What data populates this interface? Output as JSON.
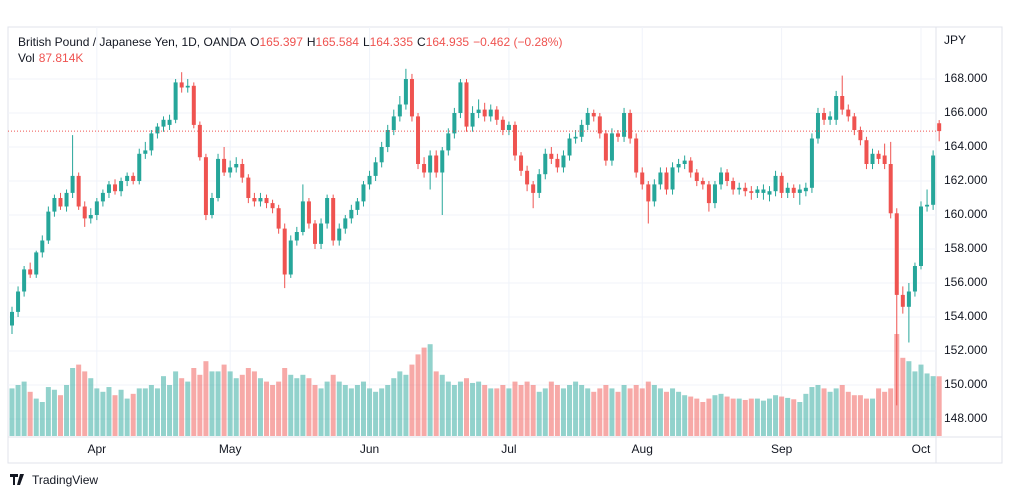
{
  "chart_data": {
    "type": "candlestick",
    "title": "British Pound / Japanese Yen, 1D, OANDA",
    "ohlc_letters": [
      "O",
      "H",
      "L",
      "C"
    ],
    "change_label": "−0.462 (−0.28%)",
    "volume_name": "Vol",
    "volume_label": "87.814K",
    "currency": "JPY",
    "brand": "TradingView",
    "up_color": "#26a69a",
    "down_color": "#ef5350",
    "grid": true,
    "ylim": [
      147,
      171
    ],
    "volume_lim": [
      0,
      600
    ],
    "yticks": [
      {
        "value": 148,
        "label": "148.000"
      },
      {
        "value": 150,
        "label": "150.000"
      },
      {
        "value": 152,
        "label": "152.000"
      },
      {
        "value": 154,
        "label": "154.000"
      },
      {
        "value": 156,
        "label": "156.000"
      },
      {
        "value": 158,
        "label": "158.000"
      },
      {
        "value": 160,
        "label": "160.000"
      },
      {
        "value": 162,
        "label": "162.000"
      },
      {
        "value": 164,
        "label": "164.000"
      },
      {
        "value": 166,
        "label": "166.000"
      },
      {
        "value": 168,
        "label": "168.000"
      }
    ],
    "xticks": [
      {
        "value": 14,
        "label": "Apr"
      },
      {
        "value": 36,
        "label": "May"
      },
      {
        "value": 59,
        "label": "Jun"
      },
      {
        "value": 82,
        "label": "Jul"
      },
      {
        "value": 104,
        "label": "Aug"
      },
      {
        "value": 127,
        "label": "Sep"
      },
      {
        "value": 150,
        "label": "Oct"
      }
    ],
    "open": [
      153.5,
      154.3,
      155.5,
      156.8,
      156.5,
      157.8,
      158.5,
      160.2,
      161.0,
      160.5,
      161.3,
      162.3,
      160.5,
      159.8,
      160.0,
      160.8,
      161.3,
      161.8,
      161.4,
      162.0,
      162.3,
      162.0,
      163.6,
      163.8,
      164.8,
      165.2,
      165.3,
      165.6,
      167.8,
      167.5,
      167.6,
      165.3,
      163.4,
      160.0,
      161.0,
      163.3,
      162.5,
      162.8,
      163.0,
      162.2,
      161.0,
      160.8,
      161.0,
      160.7,
      160.4,
      159.2,
      156.5,
      158.5,
      159.0,
      160.8,
      159.5,
      158.3,
      159.5,
      161.0,
      158.5,
      159.2,
      159.8,
      160.3,
      160.8,
      161.8,
      162.3,
      163.1,
      164.0,
      165.0,
      165.8,
      166.5,
      168.0,
      165.8,
      163.0,
      162.5,
      163.5,
      162.5,
      163.8,
      164.8,
      166.0,
      167.8,
      165.2,
      166.0,
      166.2,
      165.8,
      166.2,
      165.6,
      165.0,
      165.3,
      163.5,
      162.6,
      161.8,
      161.3,
      162.4,
      163.6,
      163.3,
      162.8,
      163.5,
      164.5,
      164.6,
      165.3,
      166.0,
      165.8,
      164.8,
      163.2,
      164.8,
      164.6,
      166.0,
      164.5,
      162.5,
      161.8,
      160.8,
      161.8,
      162.5,
      161.5,
      162.8,
      163.0,
      163.2,
      162.5,
      162.0,
      161.8,
      160.7,
      161.8,
      162.5,
      162.0,
      161.5,
      161.6,
      161.4,
      161.3,
      161.3,
      161.2,
      161.4,
      162.3,
      161.3,
      161.6,
      161.3,
      161.4,
      161.6,
      164.5,
      166.0,
      165.6,
      165.6,
      167.0,
      166.2,
      165.8,
      165.0,
      164.4,
      163.0,
      163.6,
      163.5,
      163.0,
      160.1,
      155.3,
      154.6,
      155.5,
      157.0,
      160.5,
      160.6,
      165.397
    ],
    "high": [
      154.6,
      155.8,
      157.0,
      157.2,
      157.9,
      158.8,
      160.5,
      161.2,
      161.3,
      161.5,
      164.7,
      162.5,
      160.8,
      160.4,
      161.0,
      161.5,
      162.0,
      162.1,
      162.2,
      162.5,
      162.5,
      163.9,
      164.3,
      165.0,
      165.4,
      165.8,
      165.9,
      168.0,
      168.4,
      168.0,
      167.8,
      165.5,
      163.6,
      161.3,
      163.6,
      164.0,
      163.2,
      163.4,
      163.3,
      162.4,
      161.3,
      161.3,
      161.2,
      160.9,
      160.6,
      159.5,
      158.8,
      159.3,
      161.8,
      161.0,
      159.7,
      159.8,
      161.2,
      161.2,
      159.5,
      160.0,
      160.6,
      161.0,
      162.0,
      162.6,
      163.4,
      164.3,
      165.3,
      166.2,
      167.0,
      168.6,
      168.3,
      166.0,
      163.4,
      163.8,
      163.8,
      164.0,
      165.1,
      166.3,
      168.0,
      168.0,
      166.4,
      166.8,
      166.6,
      166.5,
      166.4,
      165.8,
      165.5,
      165.5,
      163.7,
      162.9,
      162.0,
      162.7,
      163.9,
      164.0,
      163.6,
      163.8,
      164.8,
      165.0,
      165.6,
      166.3,
      166.2,
      166.0,
      165.0,
      165.1,
      165.0,
      166.3,
      166.2,
      164.8,
      162.8,
      162.0,
      162.1,
      162.8,
      162.8,
      163.1,
      163.3,
      163.5,
      163.4,
      162.7,
      162.2,
      162.0,
      162.0,
      162.8,
      162.7,
      162.2,
      161.9,
      161.9,
      161.7,
      161.7,
      161.8,
      161.7,
      162.6,
      162.5,
      161.9,
      161.8,
      161.8,
      161.9,
      164.8,
      166.3,
      166.3,
      166.1,
      167.3,
      168.2,
      166.5,
      166.0,
      165.2,
      164.6,
      163.9,
      163.8,
      164.2,
      164.3,
      160.4,
      155.8,
      156.0,
      157.2,
      160.8,
      161.5,
      163.8,
      165.584
    ],
    "low": [
      153.0,
      154.0,
      155.2,
      156.3,
      156.3,
      157.5,
      158.3,
      159.9,
      160.3,
      160.2,
      161.0,
      160.3,
      159.3,
      159.5,
      159.7,
      160.5,
      161.0,
      161.2,
      161.1,
      161.7,
      161.8,
      161.8,
      163.3,
      163.5,
      164.5,
      164.9,
      165.0,
      165.4,
      167.2,
      167.2,
      165.1,
      163.2,
      159.7,
      159.8,
      160.8,
      162.3,
      162.2,
      162.5,
      161.9,
      160.7,
      160.5,
      160.5,
      160.4,
      160.1,
      158.9,
      155.7,
      156.3,
      158.2,
      158.8,
      159.2,
      158.0,
      158.0,
      159.2,
      158.2,
      158.2,
      158.9,
      159.5,
      160.0,
      160.5,
      161.5,
      162.0,
      162.8,
      163.7,
      164.7,
      165.5,
      166.2,
      165.5,
      162.7,
      162.2,
      161.5,
      162.2,
      160.0,
      163.5,
      164.5,
      165.7,
      164.9,
      164.9,
      165.7,
      165.5,
      165.5,
      165.3,
      164.7,
      164.7,
      163.2,
      162.3,
      161.4,
      160.4,
      161.0,
      162.1,
      163.0,
      162.5,
      162.5,
      163.2,
      164.2,
      164.3,
      165.0,
      165.5,
      164.5,
      162.9,
      162.9,
      164.3,
      164.3,
      164.2,
      162.2,
      161.5,
      159.5,
      160.5,
      161.5,
      161.2,
      161.2,
      162.5,
      162.7,
      162.2,
      161.7,
      161.5,
      160.2,
      160.4,
      161.5,
      161.7,
      161.2,
      161.2,
      161.1,
      160.9,
      161.0,
      160.9,
      160.8,
      161.1,
      161.0,
      161.0,
      161.0,
      160.6,
      161.1,
      161.3,
      164.2,
      165.3,
      165.3,
      165.3,
      165.9,
      165.5,
      164.7,
      164.1,
      162.7,
      162.7,
      163.0,
      162.7,
      159.8,
      148.8,
      154.2,
      152.5,
      155.2,
      156.8,
      160.2,
      160.3,
      164.335
    ],
    "close": [
      154.3,
      155.5,
      156.8,
      156.5,
      157.8,
      158.5,
      160.2,
      161.0,
      160.5,
      161.3,
      162.3,
      160.5,
      159.8,
      160.0,
      160.8,
      161.3,
      161.8,
      161.4,
      162.0,
      162.3,
      162.0,
      163.6,
      163.8,
      164.8,
      165.2,
      165.6,
      165.6,
      167.8,
      167.5,
      167.6,
      165.3,
      163.4,
      160.0,
      161.0,
      163.3,
      162.5,
      162.8,
      163.0,
      162.2,
      161.0,
      160.8,
      161.0,
      160.7,
      160.4,
      159.2,
      156.5,
      158.5,
      159.0,
      160.8,
      159.5,
      158.3,
      159.5,
      161.0,
      158.5,
      159.2,
      159.8,
      160.3,
      160.8,
      161.8,
      162.3,
      163.1,
      164.0,
      165.0,
      165.8,
      166.5,
      168.0,
      165.8,
      163.0,
      162.5,
      163.5,
      162.5,
      163.8,
      164.8,
      166.0,
      167.8,
      165.2,
      166.0,
      166.2,
      165.8,
      166.2,
      165.6,
      165.0,
      165.3,
      163.5,
      162.6,
      161.8,
      161.3,
      162.4,
      163.6,
      163.3,
      162.8,
      163.5,
      164.5,
      164.6,
      165.3,
      166.0,
      165.8,
      164.8,
      163.2,
      164.8,
      164.6,
      166.0,
      164.5,
      162.5,
      161.8,
      160.8,
      161.8,
      162.5,
      161.5,
      162.8,
      163.0,
      163.2,
      162.5,
      162.0,
      161.8,
      160.7,
      161.8,
      162.5,
      162.0,
      161.5,
      161.6,
      161.4,
      161.3,
      161.5,
      161.5,
      161.4,
      162.3,
      161.3,
      161.6,
      161.3,
      161.5,
      161.6,
      164.5,
      166.0,
      165.6,
      165.8,
      167.0,
      166.2,
      165.8,
      165.0,
      164.4,
      163.0,
      163.6,
      163.3,
      163.0,
      160.1,
      155.3,
      154.6,
      155.5,
      157.0,
      160.5,
      160.6,
      163.5,
      164.935
    ],
    "volume": [
      70,
      75,
      80,
      65,
      55,
      50,
      72,
      68,
      60,
      75,
      100,
      105,
      95,
      85,
      70,
      65,
      72,
      60,
      68,
      55,
      62,
      70,
      70,
      75,
      70,
      88,
      75,
      95,
      85,
      80,
      100,
      90,
      110,
      95,
      95,
      105,
      95,
      85,
      90,
      100,
      95,
      85,
      80,
      75,
      80,
      100,
      90,
      85,
      90,
      85,
      75,
      70,
      80,
      90,
      80,
      75,
      70,
      75,
      80,
      70,
      65,
      70,
      75,
      85,
      95,
      90,
      105,
      120,
      130,
      135,
      95,
      90,
      80,
      75,
      80,
      85,
      78,
      80,
      75,
      70,
      70,
      75,
      70,
      80,
      75,
      80,
      75,
      65,
      70,
      80,
      75,
      70,
      75,
      80,
      75,
      70,
      65,
      70,
      75,
      70,
      65,
      75,
      70,
      75,
      70,
      80,
      75,
      70,
      65,
      70,
      65,
      60,
      58,
      55,
      50,
      55,
      60,
      62,
      58,
      55,
      55,
      53,
      55,
      55,
      52,
      55,
      60,
      58,
      56,
      54,
      50,
      62,
      72,
      75,
      70,
      65,
      70,
      75,
      65,
      60,
      60,
      55,
      55,
      70,
      65,
      70,
      150,
      115,
      110,
      95,
      105,
      92,
      88,
      87.814
    ]
  }
}
